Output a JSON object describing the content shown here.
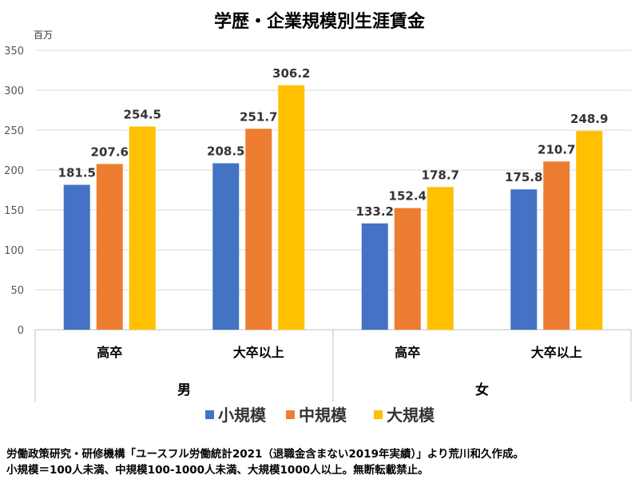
{
  "chart_data": {
    "type": "bar",
    "title": "学歴・企業規模別生涯賃金",
    "unit": "百万",
    "ylim": [
      0,
      350
    ],
    "yticks": [
      0,
      50,
      100,
      150,
      200,
      250,
      300,
      350
    ],
    "grid": true,
    "legend_position": "bottom",
    "groups": [
      {
        "label": "男",
        "categories": [
          "高卒",
          "大卒以上"
        ]
      },
      {
        "label": "女",
        "categories": [
          "高卒",
          "大卒以上"
        ]
      }
    ],
    "categories": [
      "高卒",
      "大卒以上",
      "高卒",
      "大卒以上"
    ],
    "series": [
      {
        "name": "小規模",
        "color": "#4472C4",
        "values": [
          181.5,
          208.5,
          133.2,
          175.8
        ]
      },
      {
        "name": "中規模",
        "color": "#ED7D31",
        "values": [
          207.6,
          251.7,
          152.4,
          210.7
        ]
      },
      {
        "name": "大規模",
        "color": "#FFC000",
        "values": [
          254.5,
          306.2,
          178.7,
          248.9
        ]
      }
    ]
  },
  "notes": {
    "line1": "労働政策研究・研修機構「ユースフル労働統計2021（退職金含まない2019年実績）」より荒川和久作成。",
    "line2": "小規模＝100人未満、中規模100-1000人未満、大規模1000人以上。無断転載禁止。"
  }
}
